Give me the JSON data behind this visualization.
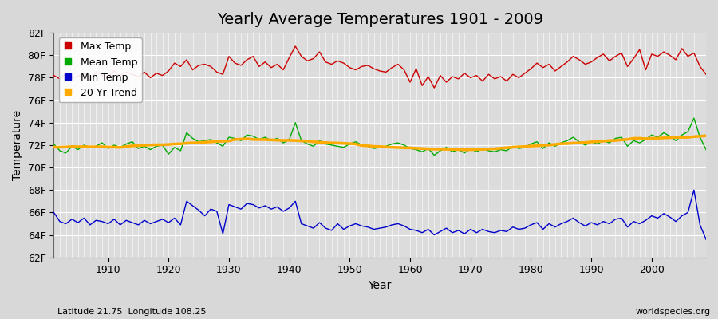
{
  "title": "Yearly Average Temperatures 1901 - 2009",
  "xlabel": "Year",
  "ylabel": "Temperature",
  "lat_lon_label": "Latitude 21.75  Longitude 108.25",
  "credit_label": "worldspecies.org",
  "years": [
    1901,
    1902,
    1903,
    1904,
    1905,
    1906,
    1907,
    1908,
    1909,
    1910,
    1911,
    1912,
    1913,
    1914,
    1915,
    1916,
    1917,
    1918,
    1919,
    1920,
    1921,
    1922,
    1923,
    1924,
    1925,
    1926,
    1927,
    1928,
    1929,
    1930,
    1931,
    1932,
    1933,
    1934,
    1935,
    1936,
    1937,
    1938,
    1939,
    1940,
    1941,
    1942,
    1943,
    1944,
    1945,
    1946,
    1947,
    1948,
    1949,
    1950,
    1951,
    1952,
    1953,
    1954,
    1955,
    1956,
    1957,
    1958,
    1959,
    1960,
    1961,
    1962,
    1963,
    1964,
    1965,
    1966,
    1967,
    1968,
    1969,
    1970,
    1971,
    1972,
    1973,
    1974,
    1975,
    1976,
    1977,
    1978,
    1979,
    1980,
    1981,
    1982,
    1983,
    1984,
    1985,
    1986,
    1987,
    1988,
    1989,
    1990,
    1991,
    1992,
    1993,
    1994,
    1995,
    1996,
    1997,
    1998,
    1999,
    2000,
    2001,
    2002,
    2003,
    2004,
    2005,
    2006,
    2007,
    2008,
    2009
  ],
  "max_temp": [
    78.2,
    77.9,
    78.3,
    78.0,
    78.1,
    78.4,
    77.8,
    78.5,
    78.2,
    78.1,
    78.6,
    78.2,
    78.5,
    78.3,
    78.1,
    78.5,
    78.0,
    78.4,
    78.2,
    78.6,
    79.3,
    79.0,
    79.6,
    78.7,
    79.1,
    79.2,
    79.0,
    78.5,
    78.3,
    79.9,
    79.3,
    79.1,
    79.6,
    79.9,
    79.0,
    79.4,
    78.9,
    79.2,
    78.7,
    79.8,
    80.8,
    79.9,
    79.5,
    79.7,
    80.3,
    79.4,
    79.2,
    79.5,
    79.3,
    78.9,
    78.7,
    79.0,
    79.1,
    78.8,
    78.6,
    78.5,
    78.9,
    79.2,
    78.7,
    77.6,
    78.8,
    77.3,
    78.1,
    77.1,
    78.2,
    77.6,
    78.1,
    77.9,
    78.4,
    78.0,
    78.2,
    77.7,
    78.3,
    77.9,
    78.1,
    77.7,
    78.3,
    78.0,
    78.4,
    78.8,
    79.3,
    78.9,
    79.2,
    78.6,
    79.0,
    79.4,
    79.9,
    79.6,
    79.2,
    79.4,
    79.8,
    80.1,
    79.5,
    79.9,
    80.2,
    79.0,
    79.7,
    80.5,
    78.7,
    80.1,
    79.9,
    80.3,
    80.0,
    79.6,
    80.6,
    79.9,
    80.2,
    79.0,
    78.3
  ],
  "mean_temp": [
    72.1,
    71.5,
    71.3,
    71.9,
    71.6,
    72.0,
    71.8,
    71.9,
    72.2,
    71.7,
    72.0,
    71.8,
    72.1,
    72.3,
    71.7,
    71.9,
    71.6,
    71.9,
    72.0,
    71.2,
    71.8,
    71.5,
    73.1,
    72.6,
    72.3,
    72.4,
    72.5,
    72.2,
    71.9,
    72.7,
    72.6,
    72.4,
    72.9,
    72.8,
    72.5,
    72.7,
    72.4,
    72.6,
    72.2,
    72.5,
    74.0,
    72.4,
    72.1,
    71.9,
    72.4,
    72.1,
    72.0,
    71.9,
    71.8,
    72.1,
    72.3,
    72.0,
    71.9,
    71.7,
    71.8,
    71.9,
    72.1,
    72.2,
    72.0,
    71.7,
    71.6,
    71.4,
    71.7,
    71.1,
    71.5,
    71.8,
    71.4,
    71.6,
    71.3,
    71.7,
    71.4,
    71.7,
    71.5,
    71.4,
    71.6,
    71.5,
    71.9,
    71.7,
    71.8,
    72.1,
    72.3,
    71.7,
    72.2,
    71.9,
    72.2,
    72.4,
    72.7,
    72.3,
    72.0,
    72.3,
    72.1,
    72.4,
    72.2,
    72.6,
    72.7,
    71.9,
    72.4,
    72.2,
    72.5,
    72.9,
    72.7,
    73.1,
    72.8,
    72.4,
    72.9,
    73.2,
    74.4,
    72.7,
    71.6
  ],
  "min_temp": [
    66.0,
    65.2,
    65.0,
    65.4,
    65.1,
    65.5,
    64.9,
    65.3,
    65.2,
    65.0,
    65.4,
    64.9,
    65.3,
    65.1,
    64.9,
    65.3,
    65.0,
    65.2,
    65.4,
    65.1,
    65.5,
    64.9,
    67.0,
    66.6,
    66.2,
    65.7,
    66.3,
    66.1,
    64.1,
    66.7,
    66.5,
    66.3,
    66.8,
    66.7,
    66.4,
    66.6,
    66.3,
    66.5,
    66.1,
    66.4,
    67.0,
    65.0,
    64.8,
    64.6,
    65.1,
    64.6,
    64.4,
    65.0,
    64.5,
    64.8,
    65.0,
    64.8,
    64.7,
    64.5,
    64.6,
    64.7,
    64.9,
    65.0,
    64.8,
    64.5,
    64.4,
    64.2,
    64.5,
    64.0,
    64.3,
    64.6,
    64.2,
    64.4,
    64.1,
    64.5,
    64.2,
    64.5,
    64.3,
    64.2,
    64.4,
    64.3,
    64.7,
    64.5,
    64.6,
    64.9,
    65.1,
    64.5,
    65.0,
    64.7,
    65.0,
    65.2,
    65.5,
    65.1,
    64.8,
    65.1,
    64.9,
    65.2,
    65.0,
    65.4,
    65.5,
    64.7,
    65.2,
    65.0,
    65.3,
    65.7,
    65.5,
    65.9,
    65.6,
    65.2,
    65.7,
    66.0,
    68.0,
    64.9,
    63.6
  ],
  "ylim": [
    62,
    82
  ],
  "yticks": [
    62,
    64,
    66,
    68,
    70,
    72,
    74,
    76,
    78,
    80,
    82
  ],
  "ytick_labels": [
    "62F",
    "64F",
    "66F",
    "68F",
    "70F",
    "72F",
    "74F",
    "76F",
    "78F",
    "80F",
    "82F"
  ],
  "xticks": [
    1910,
    1920,
    1930,
    1940,
    1950,
    1960,
    1970,
    1980,
    1990,
    2000
  ],
  "bg_color": "#d8d8d8",
  "plot_bg_color": "#dcdcdc",
  "grid_color": "#ffffff",
  "max_color": "#cc0000",
  "mean_color": "#00aa00",
  "min_color": "#0000cc",
  "trend_color": "#ffaa00",
  "trend_lw": 2.5,
  "line_lw": 1.0,
  "title_fontsize": 14,
  "label_fontsize": 10,
  "tick_fontsize": 9,
  "legend_fontsize": 9,
  "trend_window": 20
}
